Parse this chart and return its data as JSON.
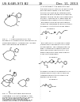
{
  "background_color": "#ffffff",
  "header_left": "US 8,685,973 B2",
  "header_center": "19",
  "header_right": "Dec. 11, 2013",
  "header_fontsize": 2.8,
  "body_fontsize": 1.85,
  "caption_fontsize": 1.85,
  "text_color": "#1a1a1a",
  "line_color": "#1a1a1a",
  "lw": 0.28,
  "col_split": 0.5
}
